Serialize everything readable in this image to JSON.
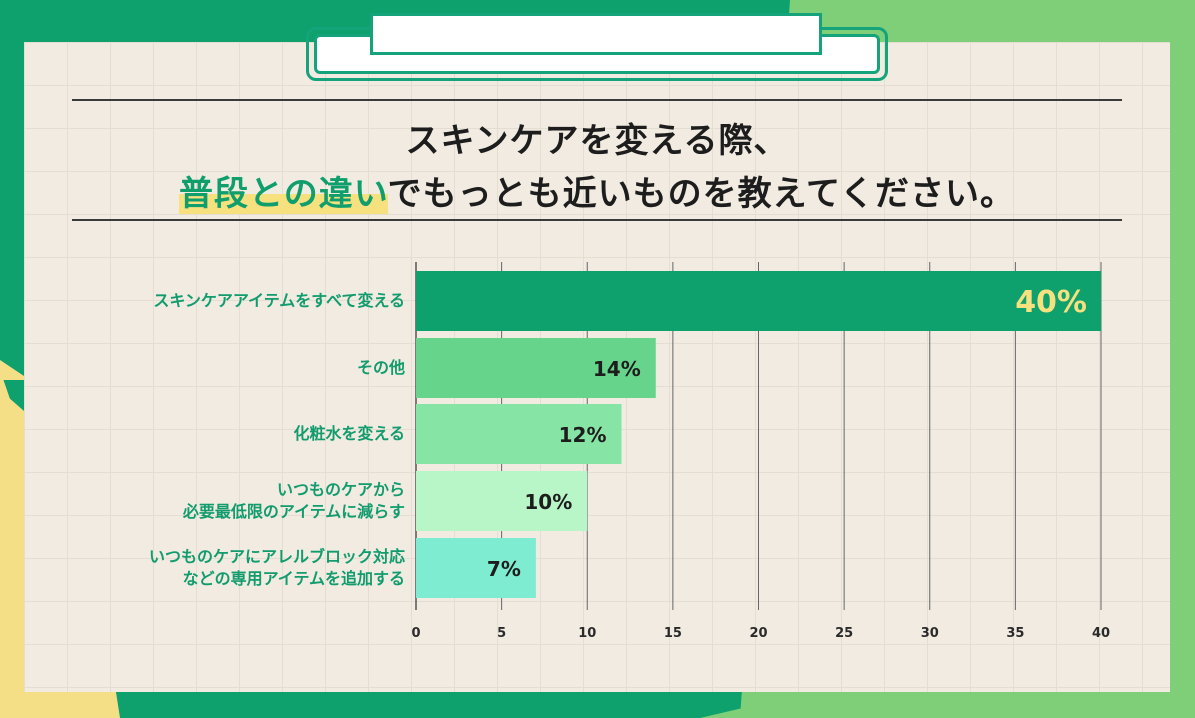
{
  "title": {
    "line1": "スキンケアを変える際、",
    "line2_highlight": "普段との違い",
    "line2_rest": "でもっとも近いものを教えてください。"
  },
  "colors": {
    "accent_green": "#0f9e6c",
    "highlight_yellow": "#f7e17f",
    "value_label_top": "#f7e17f",
    "value_label_other": "#1d1d1d"
  },
  "chart_data": {
    "type": "bar",
    "orientation": "horizontal",
    "categories": [
      [
        "スキンケアアイテムをすべて変える"
      ],
      [
        "その他"
      ],
      [
        "化粧水を変える"
      ],
      [
        "いつものケアから",
        "必要最低限のアイテムに減らす"
      ],
      [
        "いつものケアにアレルブロック対応",
        "などの専用アイテムを追加する"
      ]
    ],
    "values": [
      40,
      14,
      12,
      10,
      7
    ],
    "value_labels": [
      "40%",
      "14%",
      "12%",
      "10%",
      "7%"
    ],
    "bar_colors": [
      "#0ea16d",
      "#66d48b",
      "#86e4a4",
      "#b8f6c8",
      "#7eecd0"
    ],
    "x_ticks": [
      0,
      5,
      10,
      15,
      20,
      25,
      30,
      35,
      40
    ],
    "x_tick_labels": [
      "0",
      "5",
      "10",
      "15",
      "20",
      "25",
      "30",
      "35",
      "40"
    ],
    "xlim": [
      0,
      40
    ],
    "grid": true
  }
}
